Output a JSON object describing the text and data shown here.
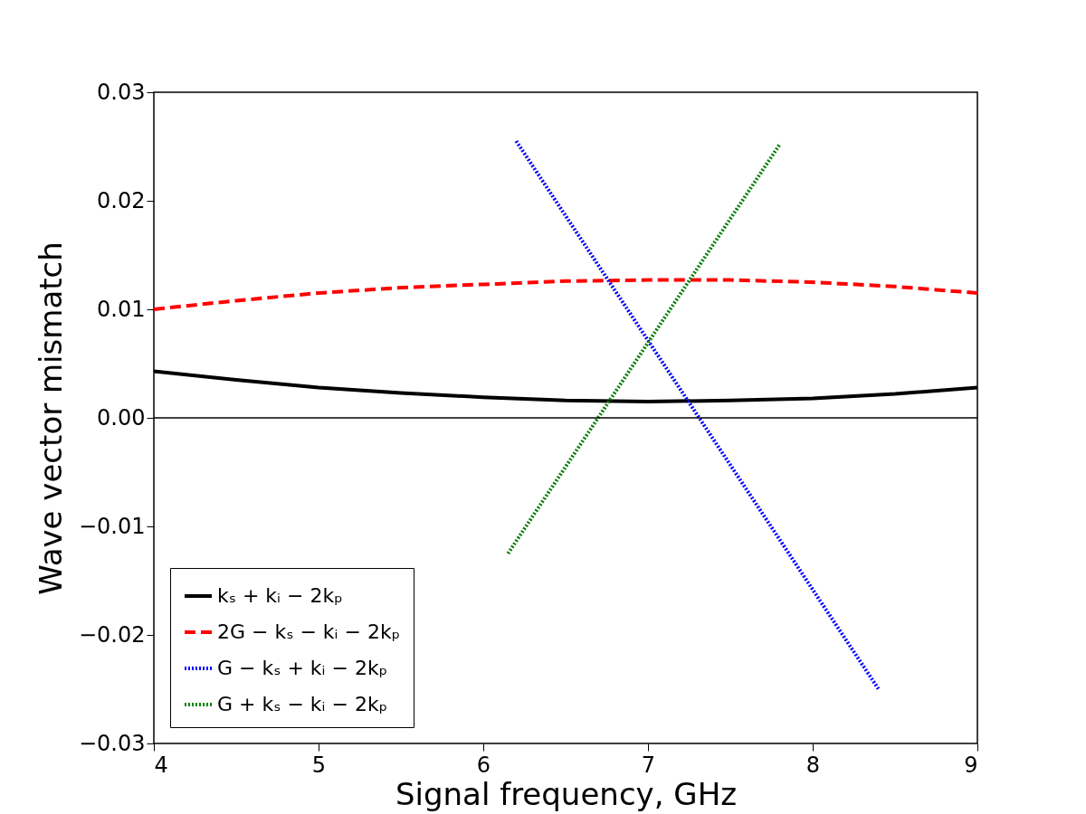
{
  "chart_data": {
    "type": "line",
    "xlabel": "Signal frequency, GHz",
    "ylabel": "Wave vector mismatch",
    "xlim": [
      4,
      9
    ],
    "xticks": [
      4,
      5,
      6,
      7,
      8,
      9
    ],
    "ylim": [
      -0.03,
      0.03
    ],
    "yticks": [
      {
        "value": -0.03,
        "label": "−0.03"
      },
      {
        "value": -0.02,
        "label": "−0.02"
      },
      {
        "value": -0.01,
        "label": "−0.01"
      },
      {
        "value": 0,
        "label": "0.00"
      },
      {
        "value": 0.01,
        "label": "0.01"
      },
      {
        "value": 0.02,
        "label": "0.02"
      },
      {
        "value": 0.03,
        "label": "0.03"
      }
    ],
    "grid": false,
    "legend": "bottom left",
    "ref_lines": [
      {
        "axis": "y",
        "value": 0,
        "color": "#000000"
      }
    ],
    "series": [
      {
        "name": "kₛ + kᵢ − 2kₚ",
        "color": "#000000",
        "line_style": "solid",
        "x": [
          4,
          4.5,
          5,
          5.5,
          6,
          6.5,
          7,
          7.5,
          8,
          8.5,
          9
        ],
        "values": [
          0.0043,
          0.0035,
          0.0028,
          0.0023,
          0.0019,
          0.0016,
          0.0015,
          0.0016,
          0.0018,
          0.0022,
          0.0028
        ]
      },
      {
        "name": "2G − kₛ − kᵢ − 2kₚ",
        "color": "#ff0000",
        "line_style": "dashed",
        "x": [
          4,
          4.5,
          5,
          5.5,
          6,
          6.5,
          7,
          7.5,
          8,
          8.5,
          9
        ],
        "values": [
          0.01,
          0.0108,
          0.0115,
          0.012,
          0.0123,
          0.0126,
          0.0127,
          0.0127,
          0.0125,
          0.0121,
          0.0115
        ]
      },
      {
        "name": "G − kₛ + kᵢ − 2kₚ",
        "color": "#0000ff",
        "line_style": "dotted",
        "x": [
          6.2,
          8.4
        ],
        "values": [
          0.0255,
          -0.025
        ]
      },
      {
        "name": "G + kₛ − kᵢ − 2kₚ",
        "color": "#008000",
        "line_style": "dotted",
        "x": [
          6.15,
          7.8
        ],
        "values": [
          -0.0125,
          0.0252
        ]
      }
    ]
  }
}
